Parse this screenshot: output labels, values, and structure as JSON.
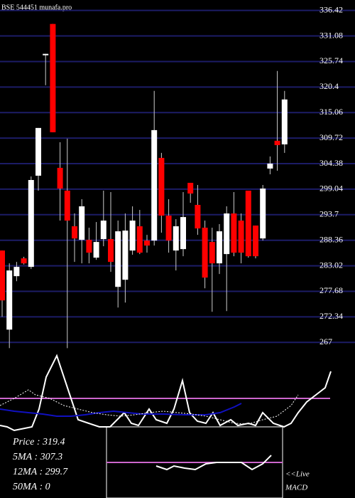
{
  "chart_data": [
    {
      "type": "candlestick",
      "title": "BSE 544451 munafa.pro",
      "ylim": [
        265.7,
        338.6
      ],
      "yticks": [
        336.42,
        331.08,
        325.74,
        320.4,
        315.06,
        309.72,
        304.38,
        299.04,
        293.7,
        288.36,
        283.02,
        277.68,
        272.34,
        267
      ],
      "grid": true,
      "grid_color": "#1c1c66",
      "up_color": "#ffffff",
      "down_color": "#ff0000",
      "wick_color": "#cccccc",
      "open": [
        286.21,
        269.67,
        280.85,
        284.57,
        282.79,
        301.86,
        327.04,
        333.59,
        303.5,
        298.73,
        291.28,
        288.45,
        288.45,
        284.72,
        288.6,
        288.6,
        278.61,
        280.1,
        286.21,
        291.28,
        288.3,
        288.3,
        305.58,
        293.51,
        286.21,
        286.51,
        300.37,
        295.75,
        290.98,
        288.0,
        283.53,
        285.47,
        293.96,
        292.47,
        298.73,
        291.43,
        288.74,
        303.35,
        309.16,
        308.41
      ],
      "high": [
        286.21,
        283.53,
        283.83,
        284.9,
        301.71,
        311.84,
        327.34,
        333.59,
        308.86,
        309.6,
        293.96,
        296.94,
        290.98,
        292.17,
        298.73,
        298.43,
        292.47,
        293.96,
        295.45,
        294.7,
        289.49,
        319.59,
        306.63,
        296.94,
        292.77,
        298.43,
        300.37,
        299.92,
        292.47,
        290.98,
        291.73,
        295.45,
        298.43,
        293.96,
        298.73,
        291.43,
        299.92,
        305.88,
        323.76,
        319.59
      ],
      "low": [
        272.35,
        265.8,
        279.8,
        283.3,
        282.34,
        298.73,
        320.78,
        310.95,
        292.47,
        265.8,
        283.83,
        283.53,
        283.53,
        284.27,
        287.11,
        281.74,
        274.29,
        275.33,
        285.32,
        285.47,
        285.76,
        287.25,
        289.94,
        285.76,
        282.04,
        285.02,
        296.19,
        289.49,
        278.31,
        273.4,
        281.3,
        273.55,
        285.02,
        283.53,
        284.72,
        284.57,
        288.3,
        302.15,
        302.9,
        306.63
      ],
      "close": [
        275.78,
        282.04,
        282.79,
        283.53,
        300.96,
        311.84,
        327.34,
        310.95,
        299.17,
        292.47,
        288.74,
        295.45,
        285.76,
        288.0,
        292.47,
        283.83,
        290.23,
        290.38,
        292.47,
        285.76,
        287.25,
        311.39,
        293.51,
        288.3,
        291.28,
        293.21,
        298.13,
        290.83,
        280.55,
        283.53,
        290.23,
        293.96,
        285.76,
        285.76,
        285.02,
        285.02,
        299.17,
        304.39,
        308.26,
        317.8
      ]
    },
    {
      "type": "line",
      "xlim": [
        0,
        500
      ],
      "ylim": [
        0,
        100
      ],
      "hlines": [
        {
          "value": 45.8,
          "color": "#cc66cc"
        }
      ],
      "series": [
        {
          "color": "#ffffff",
          "dashed": false,
          "x": [
            0,
            10,
            20,
            30,
            45,
            55,
            65,
            80,
            95,
            110,
            125,
            140,
            155,
            165,
            175,
            185,
            195,
            210,
            220,
            235,
            245,
            257,
            267,
            278,
            290,
            300,
            310,
            325,
            335,
            350,
            360,
            370,
            385,
            400,
            410,
            420,
            432,
            445,
            458,
            466
          ],
          "values": [
            14.2,
            12.5,
            8.3,
            10,
            12.5,
            33.3,
            70.8,
            95.8,
            58.3,
            20.8,
            16.7,
            12.5,
            12.5,
            20.8,
            29.2,
            16.7,
            14.2,
            33.3,
            20.8,
            16.7,
            33.3,
            66.7,
            29.2,
            19.2,
            16.7,
            29.2,
            14.2,
            20.8,
            14.2,
            16.7,
            14.2,
            29.2,
            16.7,
            12.5,
            16.7,
            29.2,
            41.7,
            50,
            58.3,
            77.5
          ]
        },
        {
          "color": "#1010c0",
          "dashed": false,
          "x": [
            0,
            20,
            40,
            60,
            80,
            100,
            120,
            140,
            160,
            180,
            200,
            230,
            260,
            290,
            310,
            330,
            340
          ],
          "values": [
            33.3,
            30.8,
            29.2,
            27.5,
            25,
            25,
            26.7,
            29.2,
            30.8,
            29.2,
            27.5,
            27.5,
            26.7,
            26.7,
            29.2,
            35.8,
            40
          ]
        },
        {
          "color": "#ffffff",
          "dashed": true,
          "x": [
            0,
            20,
            40,
            50,
            70,
            90,
            110,
            130,
            150,
            170,
            190,
            210,
            230,
            250,
            270,
            290,
            310,
            330,
            350,
            370,
            390,
            410,
            420
          ],
          "values": [
            37.5,
            45.8,
            55.8,
            50,
            45.8,
            37.5,
            33.3,
            29.2,
            26.7,
            25,
            26.7,
            29.2,
            30.8,
            29.2,
            27.5,
            25,
            20.8,
            16.7,
            15.8,
            20.8,
            25,
            37.5,
            50
          ]
        }
      ]
    },
    {
      "type": "macd",
      "xlim": [
        0,
        248
      ],
      "ylim": [
        -10,
        10
      ],
      "hlines": [
        {
          "value": 0,
          "color": "#cc66cc"
        }
      ],
      "series": [
        {
          "color": "#ffffff",
          "dashed": false,
          "x": [
            70,
            85,
            95,
            110,
            125,
            140,
            155,
            190,
            205,
            220,
            232
          ],
          "values": [
            -1,
            -2,
            -1,
            -1.6,
            -2,
            -0.4,
            0,
            0,
            -2,
            -0.4,
            2
          ]
        }
      ]
    }
  ],
  "readout": {
    "lines": [
      "Price   :  319.4",
      "5MA : 307.3",
      "12MA : 299.7",
      "50MA : 0"
    ],
    "note": [
      "<<Live",
      "MACD"
    ]
  }
}
